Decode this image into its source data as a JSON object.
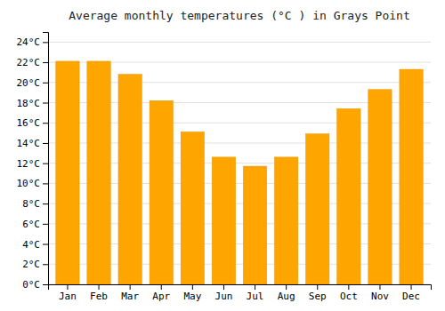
{
  "chart_data": {
    "type": "bar",
    "title": "Average monthly temperatures (°C ) in Grays Point",
    "categories": [
      "Jan",
      "Feb",
      "Mar",
      "Apr",
      "May",
      "Jun",
      "Jul",
      "Aug",
      "Sep",
      "Oct",
      "Nov",
      "Dec"
    ],
    "values": [
      22.1,
      22.1,
      20.8,
      18.2,
      15.1,
      12.6,
      11.7,
      12.6,
      14.9,
      17.4,
      19.3,
      21.3
    ],
    "color": "#FFA500",
    "ylim": [
      0,
      25
    ],
    "yticks": [
      {
        "value": 0,
        "label": "0°C"
      },
      {
        "value": 2,
        "label": "2°C"
      },
      {
        "value": 4,
        "label": "4°C"
      },
      {
        "value": 6,
        "label": "6°C"
      },
      {
        "value": 8,
        "label": "8°C"
      },
      {
        "value": 10,
        "label": "10°C"
      },
      {
        "value": 12,
        "label": "12°C"
      },
      {
        "value": 14,
        "label": "14°C"
      },
      {
        "value": 16,
        "label": "16°C"
      },
      {
        "value": 18,
        "label": "18°C"
      },
      {
        "value": 20,
        "label": "20°C"
      },
      {
        "value": 22,
        "label": "22°C"
      },
      {
        "value": 24,
        "label": "24°C"
      }
    ],
    "grid": true
  }
}
